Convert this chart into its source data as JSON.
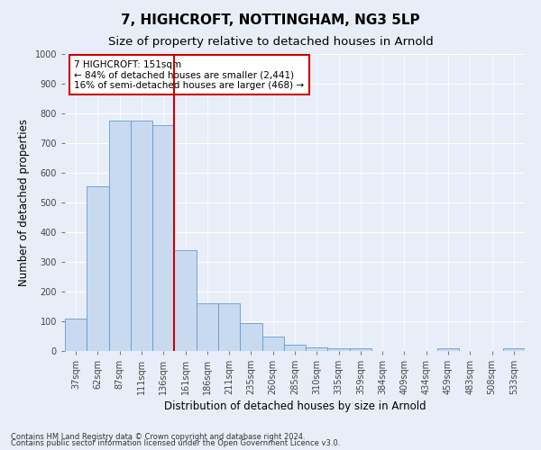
{
  "title": "7, HIGHCROFT, NOTTINGHAM, NG3 5LP",
  "subtitle": "Size of property relative to detached houses in Arnold",
  "xlabel": "Distribution of detached houses by size in Arnold",
  "ylabel": "Number of detached properties",
  "categories": [
    "37sqm",
    "62sqm",
    "87sqm",
    "111sqm",
    "136sqm",
    "161sqm",
    "186sqm",
    "211sqm",
    "235sqm",
    "260sqm",
    "285sqm",
    "310sqm",
    "335sqm",
    "359sqm",
    "384sqm",
    "409sqm",
    "434sqm",
    "459sqm",
    "483sqm",
    "508sqm",
    "533sqm"
  ],
  "values": [
    110,
    555,
    775,
    775,
    760,
    340,
    160,
    160,
    95,
    50,
    20,
    12,
    10,
    10,
    0,
    0,
    0,
    8,
    0,
    0,
    8
  ],
  "bar_color": "#c8daf0",
  "bar_edge_color": "#6699cc",
  "vline_color": "#cc0000",
  "vline_pos": 4.5,
  "annotation_text": "7 HIGHCROFT: 151sqm\n← 84% of detached houses are smaller (2,441)\n16% of semi-detached houses are larger (468) →",
  "annotation_box_facecolor": "#ffffff",
  "annotation_box_edgecolor": "#cc0000",
  "ylim": [
    0,
    1000
  ],
  "yticks": [
    0,
    100,
    200,
    300,
    400,
    500,
    600,
    700,
    800,
    900,
    1000
  ],
  "footer1": "Contains HM Land Registry data © Crown copyright and database right 2024.",
  "footer2": "Contains public sector information licensed under the Open Government Licence v3.0.",
  "fig_bg_color": "#e8eef8",
  "plot_bg_color": "#e8eef8",
  "grid_color": "#ffffff",
  "title_fontsize": 11,
  "subtitle_fontsize": 9.5,
  "xlabel_fontsize": 8.5,
  "ylabel_fontsize": 8.5,
  "tick_fontsize": 7,
  "annotation_fontsize": 7.5,
  "footer_fontsize": 6
}
